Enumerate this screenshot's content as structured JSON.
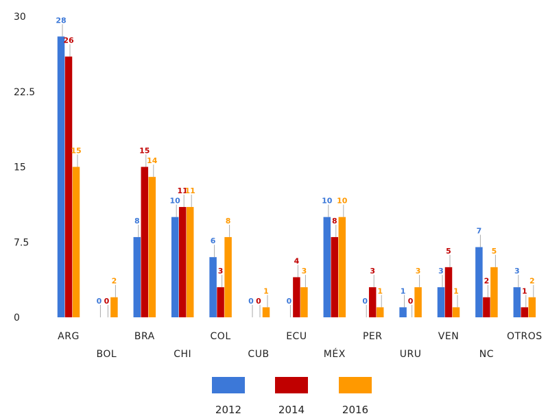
{
  "chart_data": {
    "type": "bar",
    "title": "",
    "xlabel": "",
    "ylabel": "",
    "ylim": [
      0,
      30
    ],
    "yticks": [
      "0",
      "7.5",
      "15",
      "22.5",
      "30"
    ],
    "grid": false,
    "legend_position": "bottom",
    "categories": [
      "ARG",
      "BOL",
      "BRA",
      "CHI",
      "COL",
      "CUB",
      "ECU",
      "MÉX",
      "PER",
      "URU",
      "VEN",
      "NC",
      "OTROS"
    ],
    "series": [
      {
        "name": "2012",
        "color": "#3c78d8",
        "values": [
          28,
          0,
          8,
          10,
          6,
          0,
          0,
          10,
          0,
          1,
          3,
          7,
          3
        ],
        "labels": [
          "28",
          "0",
          "8",
          "10",
          "6",
          "0",
          "0",
          "10",
          "0",
          "1",
          "3",
          "7",
          "3"
        ]
      },
      {
        "name": "2014",
        "color": "#c00000",
        "values": [
          26,
          0,
          15,
          11,
          3,
          0,
          4,
          8,
          3,
          0,
          5,
          2,
          1
        ],
        "labels": [
          "26",
          "0",
          "15",
          "11",
          "3",
          "0",
          "4",
          "8",
          "3",
          "0",
          "5",
          "2",
          "1"
        ]
      },
      {
        "name": "2016",
        "color": "#ff9900",
        "values": [
          15,
          2,
          14,
          11,
          8,
          1,
          3,
          10,
          1,
          3,
          1,
          5,
          2
        ],
        "labels": [
          "15",
          "2",
          "14",
          "11",
          "8",
          "1",
          "3",
          "10",
          "1",
          "3",
          "1",
          "5",
          "2"
        ]
      }
    ]
  }
}
